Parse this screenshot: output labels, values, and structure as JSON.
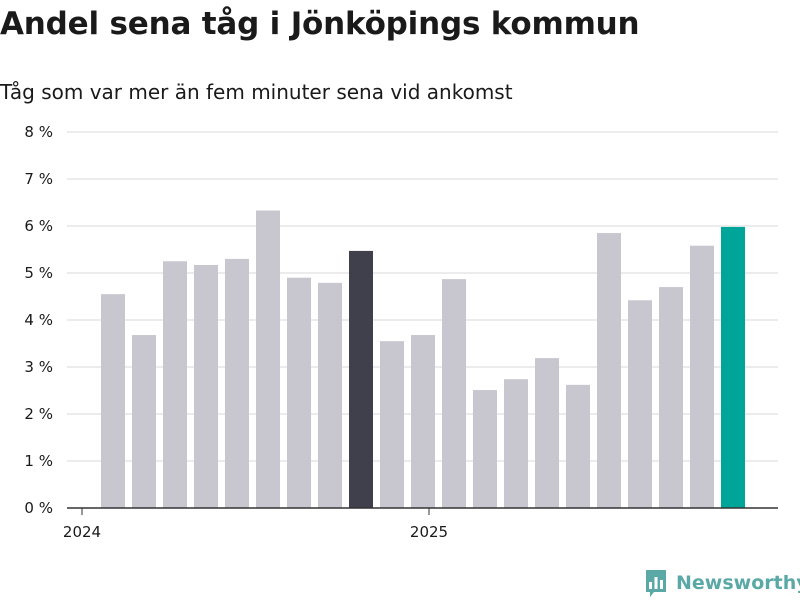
{
  "title": "Andel sena tåg i Jönköpings kommun",
  "subtitle": "Tåg som var mer än fem minuter sena vid ankomst",
  "logo": {
    "text": "Newsworthy",
    "icon": "newsworthy-logo-icon"
  },
  "colors": {
    "default_bar": "#c8c7cf",
    "highlight_bar": "#403f4c",
    "latest_bar": "#00a59a",
    "grid": "#d9d9d9",
    "axis": "#333333"
  },
  "chart_data": {
    "type": "bar",
    "title": "Andel sena tåg i Jönköpings kommun",
    "ylabel": "",
    "xlabel": "",
    "ylim": [
      0,
      8
    ],
    "yticks": [
      0,
      1,
      2,
      3,
      4,
      5,
      6,
      7,
      8
    ],
    "ytick_labels": [
      "0 %",
      "1 %",
      "2 %",
      "3 %",
      "4 %",
      "5 %",
      "6 %",
      "7 %",
      "8 %"
    ],
    "xticks": [
      {
        "label": "2024",
        "position": 0
      },
      {
        "label": "2025",
        "position": 12
      }
    ],
    "categories": [
      "2024-01",
      "2024-02",
      "2024-03",
      "2024-04",
      "2024-05",
      "2024-06",
      "2024-07",
      "2024-08",
      "2024-09",
      "2024-10",
      "2024-11",
      "2024-12",
      "2025-01",
      "2025-02",
      "2025-03",
      "2025-04",
      "2025-05",
      "2025-06",
      "2025-07",
      "2025-08",
      "2025-09",
      "2025-10",
      "2025-11",
      "2025-12"
    ],
    "values": [
      null,
      4.55,
      3.68,
      5.25,
      5.17,
      5.3,
      6.33,
      4.9,
      4.79,
      5.47,
      3.55,
      3.68,
      4.87,
      2.51,
      2.74,
      3.19,
      2.62,
      5.85,
      4.42,
      4.7,
      5.58,
      5.98,
      null,
      null
    ],
    "highlight": {
      "2024-10": "highlight_bar",
      "2025-10": "latest_bar"
    },
    "grid": true
  }
}
